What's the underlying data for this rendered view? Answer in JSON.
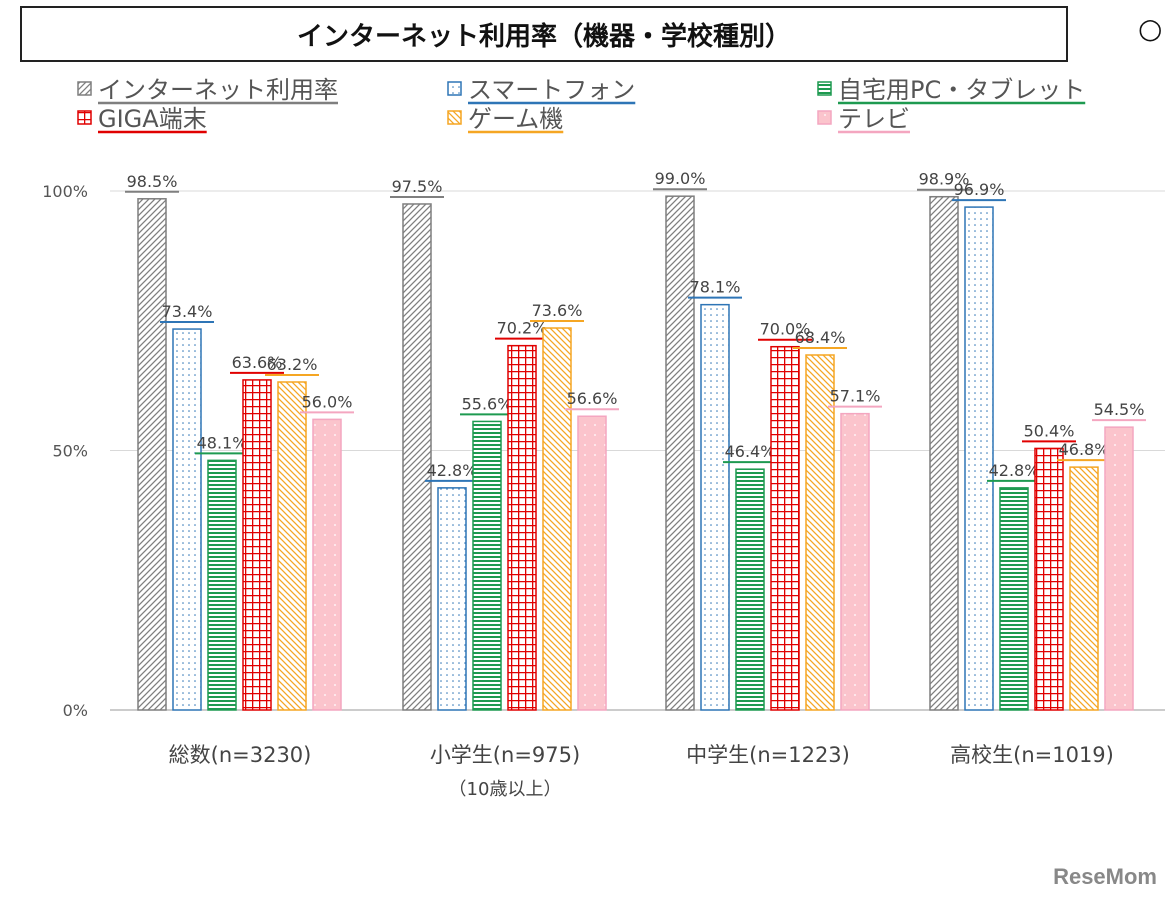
{
  "chart_data": {
    "type": "bar",
    "title": "インターネット利用率（機器・学校種別）",
    "title_cut": "○",
    "categories": [
      "総数(n=3230)",
      "小学生(n=975)",
      "中学生(n=1223)",
      "高校生(n=1019)"
    ],
    "category_sublabels": [
      "",
      "（10歳以上）",
      "",
      ""
    ],
    "series": [
      {
        "name": "インターネット利用率",
        "values": [
          98.5,
          97.5,
          99.0,
          98.9
        ],
        "color": "#7f7f7f",
        "pattern": "diagonal-hatch"
      },
      {
        "name": "スマートフォン",
        "values": [
          73.4,
          42.8,
          78.1,
          96.9
        ],
        "color": "#2e75b6",
        "pattern": "dots"
      },
      {
        "name": "自宅用PC・タブレット",
        "values": [
          48.1,
          55.6,
          46.4,
          42.8
        ],
        "color": "#1e9a50",
        "pattern": "horizontal-lines"
      },
      {
        "name": "GIGA端末",
        "values": [
          63.6,
          70.2,
          70.0,
          50.4
        ],
        "color": "#e00000",
        "pattern": "grid"
      },
      {
        "name": "ゲーム機",
        "values": [
          63.2,
          73.6,
          68.4,
          46.8
        ],
        "color": "#f5a623",
        "pattern": "reverse-diagonal-hatch"
      },
      {
        "name": "テレビ",
        "values": [
          56.0,
          56.6,
          57.1,
          54.5
        ],
        "color": "#f4a6c0",
        "pattern": "pink-dots"
      }
    ],
    "ylim": [
      0,
      100
    ],
    "yticks": [
      "0%",
      "50%",
      "100%"
    ],
    "grid": true,
    "legend_placement": "top"
  },
  "watermark": "ReseMom"
}
